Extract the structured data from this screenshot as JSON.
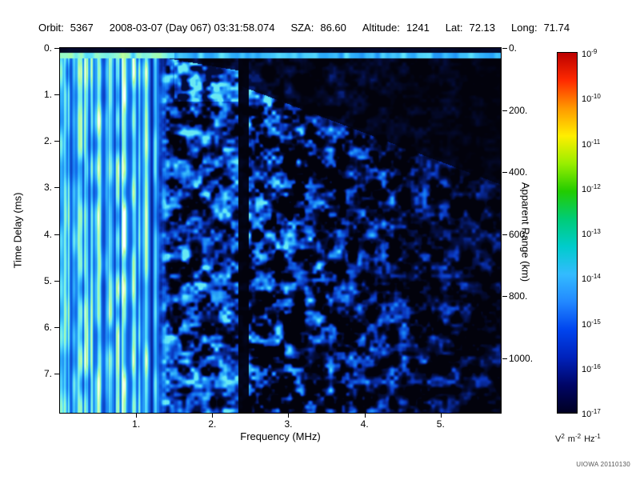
{
  "header": {
    "segments": [
      {
        "label": "Orbit:",
        "value": "5367"
      },
      {
        "label": "",
        "value": "2008-03-07 (Day 067) 03:31:58.074"
      },
      {
        "label": "SZA:",
        "value": "86.60"
      },
      {
        "label": "Altitude:",
        "value": "1241"
      },
      {
        "label": "Lat:",
        "value": "72.13"
      },
      {
        "label": "Long:",
        "value": "71.74"
      }
    ]
  },
  "chart_data": {
    "type": "heatmap",
    "title": "",
    "xlabel": "Frequency (MHz)",
    "ylabel_left": "Time Delay (ms)",
    "ylabel_right": "Apparent Range (km)",
    "x_axis": {
      "min": 0,
      "max": 5.79,
      "ticks": [
        1,
        2,
        3,
        4,
        5
      ],
      "labels": [
        "1.",
        "2.",
        "3.",
        "4.",
        "5."
      ]
    },
    "y_axis_left": {
      "min": 0,
      "max": 7.84,
      "ticks": [
        0,
        1,
        2,
        3,
        4,
        5,
        6,
        7
      ],
      "labels": [
        "0.",
        "1.",
        "2.",
        "3.",
        "4.",
        "5.",
        "6.",
        "7."
      ]
    },
    "y_axis_right": {
      "min": 0,
      "max": 1176,
      "km_per_ms": 150,
      "ticks": [
        0,
        200,
        400,
        600,
        800,
        1000
      ],
      "labels": [
        "0.",
        "200.",
        "400.",
        "600.",
        "800.",
        "1000."
      ]
    },
    "colorbar": {
      "base": "10",
      "exponents": [
        "-9",
        "-10",
        "-11",
        "-12",
        "-13",
        "-14",
        "-15",
        "-16",
        "-17"
      ],
      "units_parts": [
        [
          "V",
          "2"
        ],
        [
          "m",
          "-2"
        ],
        [
          "Hz",
          "-1"
        ]
      ],
      "gradient": [
        "#bb0000",
        "#ff2a00",
        "#ff9900",
        "#ffee00",
        "#99ee00",
        "#22cc00",
        "#00cc77",
        "#00cccc",
        "#33bbff",
        "#2288ff",
        "#0044ee",
        "#0022bb",
        "#000566",
        "#000022"
      ]
    },
    "features": {
      "surface_echo_band_ms": [
        0.1,
        0.22
      ],
      "striation_blend_mhz": [
        1.28,
        1.42
      ],
      "echo_column_mhz": [
        1.5,
        2.34
      ],
      "bright_patch_t_ms": 1.15,
      "interference_gap_mhz": [
        2.34,
        2.47
      ],
      "fade_start_mhz": 2.5,
      "wedge_slope_ms_per_mhz": 0.62
    },
    "colormap_stops": [
      [
        0.0,
        2,
        2,
        12
      ],
      [
        0.15,
        4,
        16,
        72
      ],
      [
        0.3,
        10,
        52,
        185
      ],
      [
        0.45,
        18,
        112,
        238
      ],
      [
        0.58,
        45,
        172,
        250
      ],
      [
        0.7,
        95,
        228,
        250
      ],
      [
        0.8,
        145,
        250,
        212
      ],
      [
        0.88,
        175,
        252,
        155
      ],
      [
        0.94,
        225,
        255,
        185
      ],
      [
        1.0,
        255,
        255,
        255
      ]
    ],
    "description": "AIS radargram: strong vertically-striated ionospheric echoes below ~1.4 MHz, bright surface echo line near 0.2 ms delay across all frequencies, diffuse blue speckle from 1.5-5.5 MHz fading toward high frequency, dark wedge under the surface line, and a black interference gap near 2.4 MHz."
  },
  "footer": {
    "credit": "UIOWA 20110130"
  }
}
